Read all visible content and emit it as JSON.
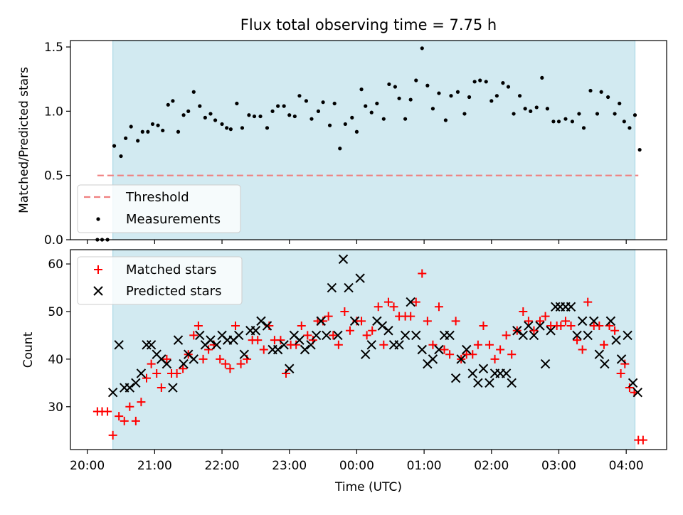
{
  "chart_data": [
    {
      "type": "scatter",
      "title": "Flux total observing time = 7.75 h",
      "xlabel": "",
      "ylabel": "Matched/Predicted stars",
      "ylim": [
        0,
        1.55
      ],
      "yticks": [
        "0.0",
        "0.5",
        "1.0",
        "1.5"
      ],
      "threshold": 0.5,
      "threshold_color": "#f08080",
      "shading_color": "#add8e6",
      "legend_placement": "lower-left",
      "legend": [
        "Threshold",
        "Measurements"
      ],
      "series": [
        {
          "name": "Measurements",
          "marker": "dot",
          "color": "#000000",
          "x": [
            20.15,
            20.22,
            20.3,
            20.4,
            20.5,
            20.57,
            20.65,
            20.75,
            20.82,
            20.9,
            20.97,
            21.05,
            21.12,
            21.2,
            21.27,
            21.35,
            21.43,
            21.5,
            21.58,
            21.67,
            21.75,
            21.83,
            21.9,
            22.0,
            22.07,
            22.13,
            22.22,
            22.3,
            22.4,
            22.48,
            22.57,
            22.67,
            22.75,
            22.83,
            22.92,
            23.0,
            23.08,
            23.15,
            23.25,
            23.33,
            23.43,
            23.5,
            23.6,
            23.67,
            23.75,
            23.83,
            23.93,
            24.0,
            24.07,
            24.13,
            24.22,
            24.3,
            24.4,
            24.48,
            24.57,
            24.63,
            24.72,
            24.8,
            24.88,
            24.97,
            25.05,
            25.13,
            25.22,
            25.32,
            25.4,
            25.5,
            25.6,
            25.67,
            25.75,
            25.83,
            25.92,
            26.0,
            26.08,
            26.17,
            26.25,
            26.33,
            26.42,
            26.5,
            26.58,
            26.67,
            26.75,
            26.83,
            26.92,
            27.0,
            27.1,
            27.2,
            27.3,
            27.37,
            27.47,
            27.57,
            27.63,
            27.73,
            27.83,
            27.9,
            27.97,
            28.05,
            28.13,
            28.2
          ],
          "y": [
            0.0,
            0.0,
            0.0,
            0.73,
            0.65,
            0.79,
            0.88,
            0.77,
            0.84,
            0.84,
            0.9,
            0.89,
            0.85,
            1.05,
            1.08,
            0.84,
            0.97,
            1.0,
            1.15,
            1.04,
            0.95,
            0.98,
            0.93,
            0.9,
            0.87,
            0.86,
            1.06,
            0.87,
            0.97,
            0.96,
            0.96,
            0.87,
            1.0,
            1.04,
            1.04,
            0.97,
            0.96,
            1.12,
            1.08,
            0.94,
            1.0,
            1.07,
            0.89,
            1.06,
            0.71,
            0.9,
            0.95,
            0.84,
            1.17,
            1.04,
            0.99,
            1.06,
            0.94,
            1.21,
            1.19,
            1.1,
            0.94,
            1.09,
            1.24,
            1.49,
            1.2,
            1.02,
            1.14,
            0.93,
            1.12,
            1.15,
            0.98,
            1.11,
            1.23,
            1.24,
            1.23,
            1.08,
            1.12,
            1.22,
            1.19,
            0.98,
            1.12,
            1.02,
            1.0,
            1.03,
            1.26,
            1.02,
            0.92,
            0.92,
            0.94,
            0.92,
            0.98,
            0.87,
            1.16,
            0.98,
            1.15,
            1.11,
            0.98,
            1.06,
            0.92,
            0.87,
            0.97,
            0.7
          ]
        }
      ]
    },
    {
      "type": "scatter",
      "title": "",
      "xlabel": "Time (UTC)",
      "ylabel": "Count",
      "ylim": [
        21,
        63
      ],
      "yticks": [
        "30",
        "40",
        "50",
        "60"
      ],
      "xticks": [
        "20:00",
        "21:00",
        "22:00",
        "23:00",
        "00:00",
        "01:00",
        "02:00",
        "03:00",
        "04:00"
      ],
      "xtick_values": [
        20,
        21,
        22,
        23,
        24,
        25,
        26,
        27,
        28
      ],
      "xlim": [
        19.75,
        28.6
      ],
      "shading": [
        20.38,
        28.13
      ],
      "legend_placement": "upper-left",
      "legend": [
        "Matched stars",
        "Predicted stars"
      ],
      "series": [
        {
          "name": "Matched stars",
          "marker": "plus",
          "color": "#ff0000",
          "x": [
            20.15,
            20.22,
            20.3,
            20.38,
            20.47,
            20.55,
            20.63,
            20.72,
            20.8,
            20.88,
            20.95,
            21.03,
            21.1,
            21.18,
            21.25,
            21.33,
            21.42,
            21.5,
            21.58,
            21.65,
            21.72,
            21.8,
            21.88,
            21.97,
            22.05,
            22.12,
            22.2,
            22.28,
            22.37,
            22.45,
            22.53,
            22.62,
            22.7,
            22.78,
            22.87,
            22.95,
            23.02,
            23.1,
            23.18,
            23.27,
            23.35,
            23.42,
            23.5,
            23.58,
            23.65,
            23.73,
            23.82,
            23.9,
            24.0,
            24.07,
            24.15,
            24.23,
            24.32,
            24.4,
            24.47,
            24.55,
            24.63,
            24.72,
            24.8,
            24.88,
            24.97,
            25.05,
            25.13,
            25.22,
            25.3,
            25.38,
            25.47,
            25.55,
            25.63,
            25.72,
            25.8,
            25.88,
            25.97,
            26.05,
            26.13,
            26.22,
            26.3,
            26.38,
            26.47,
            26.55,
            26.63,
            26.72,
            26.8,
            26.88,
            26.97,
            27.03,
            27.1,
            27.18,
            27.27,
            27.35,
            27.43,
            27.52,
            27.6,
            27.67,
            27.75,
            27.83,
            27.92,
            27.98,
            28.05,
            28.12,
            28.18,
            28.25
          ],
          "y": [
            29,
            29,
            29,
            24,
            28,
            27,
            30,
            27,
            31,
            36,
            39,
            37,
            34,
            40,
            37,
            37,
            38,
            41,
            45,
            47,
            40,
            42,
            43,
            40,
            39,
            38,
            47,
            39,
            40,
            44,
            44,
            42,
            47,
            44,
            44,
            37,
            43,
            43,
            47,
            45,
            44,
            48,
            48,
            49,
            45,
            43,
            50,
            46,
            48,
            48,
            45,
            46,
            51,
            43,
            52,
            51,
            49,
            49,
            49,
            52,
            58,
            48,
            43,
            51,
            42,
            41,
            48,
            40,
            41,
            41,
            43,
            47,
            43,
            40,
            42,
            45,
            41,
            46,
            50,
            48,
            46,
            48,
            49,
            47,
            47,
            47,
            48,
            47,
            44,
            42,
            52,
            47,
            47,
            43,
            47,
            46,
            37,
            39,
            34,
            33,
            23,
            23
          ]
        },
        {
          "name": "Predicted stars",
          "marker": "x",
          "color": "#000000",
          "x": [
            20.38,
            20.47,
            20.55,
            20.63,
            20.72,
            20.8,
            20.88,
            20.95,
            21.03,
            21.1,
            21.18,
            21.27,
            21.35,
            21.43,
            21.5,
            21.58,
            21.67,
            21.75,
            21.83,
            21.92,
            22.0,
            22.08,
            22.17,
            22.25,
            22.33,
            22.42,
            22.5,
            22.58,
            22.67,
            22.75,
            22.83,
            22.92,
            23.0,
            23.07,
            23.15,
            23.23,
            23.32,
            23.4,
            23.47,
            23.55,
            23.63,
            23.72,
            23.8,
            23.88,
            23.97,
            24.05,
            24.13,
            24.22,
            24.3,
            24.38,
            24.47,
            24.55,
            24.63,
            24.72,
            24.8,
            24.88,
            24.97,
            25.05,
            25.13,
            25.22,
            25.3,
            25.38,
            25.47,
            25.55,
            25.63,
            25.72,
            25.8,
            25.88,
            25.97,
            26.05,
            26.13,
            26.22,
            26.3,
            26.38,
            26.47,
            26.55,
            26.63,
            26.72,
            26.8,
            26.88,
            26.95,
            27.02,
            27.1,
            27.18,
            27.27,
            27.35,
            27.43,
            27.52,
            27.6,
            27.68,
            27.77,
            27.85,
            27.93,
            28.02,
            28.1,
            28.17
          ],
          "y": [
            33,
            43,
            34,
            34,
            35,
            37,
            43,
            43,
            41,
            40,
            39,
            34,
            44,
            39,
            41,
            40,
            45,
            43,
            44,
            43,
            45,
            44,
            44,
            45,
            41,
            46,
            46,
            48,
            47,
            42,
            42,
            43,
            38,
            45,
            44,
            42,
            43,
            45,
            48,
            45,
            55,
            45,
            61,
            55,
            48,
            57,
            41,
            43,
            48,
            47,
            46,
            43,
            43,
            45,
            52,
            45,
            42,
            39,
            40,
            42,
            45,
            45,
            36,
            40,
            42,
            37,
            35,
            38,
            35,
            37,
            37,
            37,
            35,
            46,
            45,
            47,
            45,
            47,
            39,
            46,
            51,
            51,
            51,
            51,
            45,
            48,
            45,
            48,
            41,
            39,
            48,
            44,
            40,
            45,
            35,
            33
          ]
        }
      ]
    }
  ]
}
